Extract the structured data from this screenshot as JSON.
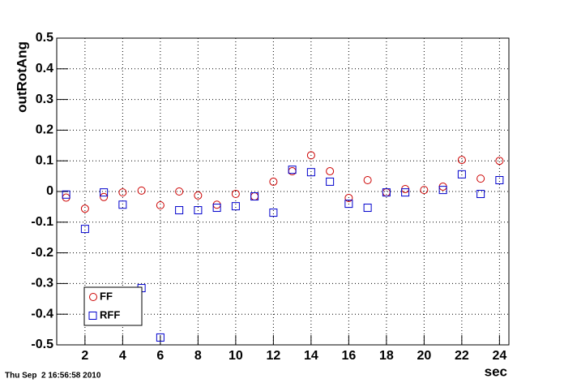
{
  "chart_data": {
    "type": "scatter",
    "x_label": "sec",
    "y_label": "outRotAng",
    "x": [
      1,
      2,
      3,
      4,
      5,
      6,
      7,
      8,
      9,
      10,
      11,
      12,
      13,
      14,
      15,
      16,
      17,
      18,
      19,
      20,
      21,
      22,
      23,
      24
    ],
    "series": [
      {
        "name": "FF",
        "color": "#cc0000",
        "marker": "circle",
        "values": [
          -0.02,
          -0.056,
          -0.018,
          -0.003,
          0.003,
          -0.045,
          0,
          -0.013,
          -0.043,
          -0.008,
          -0.016,
          0.032,
          0.066,
          0.118,
          0.066,
          -0.021,
          0.037,
          -0.003,
          0.008,
          0.005,
          0.016,
          0.103,
          0.042,
          0.1
        ]
      },
      {
        "name": "RFF",
        "color": "#0000cc",
        "marker": "square",
        "values": [
          -0.01,
          -0.122,
          -0.003,
          -0.043,
          -0.315,
          -0.476,
          -0.061,
          -0.061,
          -0.053,
          -0.048,
          -0.016,
          -0.069,
          0.071,
          0.063,
          0.032,
          -0.04,
          -0.053,
          -0.003,
          -0.003,
          null,
          0.005,
          0.056,
          -0.008,
          0.037
        ]
      }
    ],
    "xlim": [
      0.5,
      24.5
    ],
    "xticks": [
      2,
      4,
      6,
      8,
      10,
      12,
      14,
      16,
      18,
      20,
      22,
      24
    ],
    "ylim": [
      -0.5,
      0.5
    ],
    "yticks": [
      -0.5,
      -0.4,
      -0.3,
      -0.2,
      -0.1,
      0,
      0.1,
      0.2,
      0.3,
      0.4,
      0.5
    ],
    "grid": true,
    "legend": "bottom-left",
    "footer": "Thu Sep  2 16:56:58 2010"
  }
}
